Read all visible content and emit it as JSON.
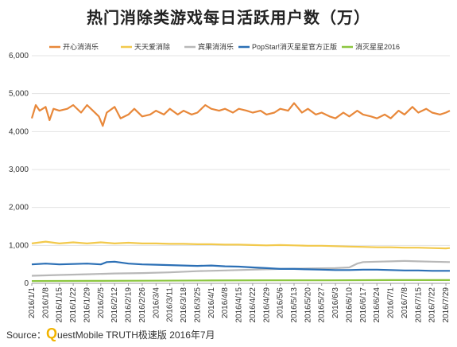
{
  "title": "热门消除类游戏每日活跃用户数（万）",
  "source": {
    "label": "Source：",
    "brand_q": "Q",
    "brand_rest": "uestMobile TRUTH极速版 2016年7月"
  },
  "chart_data": {
    "type": "line",
    "title": "热门消除类游戏每日活跃用户数（万）",
    "xlabel": "",
    "ylabel": "",
    "ylim": [
      0,
      6000
    ],
    "yticks": [
      0,
      1000,
      2000,
      3000,
      4000,
      5000,
      6000
    ],
    "ytick_labels": [
      "0",
      "1,000",
      "2,000",
      "3,000",
      "4,000",
      "5,000",
      "6,000"
    ],
    "grid": true,
    "legend": "top",
    "x_start": "2016/1/1",
    "x_end": "2016/7/31",
    "x_tick_labels": [
      "2016/1/1",
      "2016/1/8",
      "2016/1/15",
      "2016/1/22",
      "2016/1/29",
      "2016/2/5",
      "2016/2/12",
      "2016/2/19",
      "2016/2/26",
      "2016/3/4",
      "2016/3/11",
      "2016/3/18",
      "2016/3/25",
      "2016/4/1",
      "2016/4/8",
      "2016/4/15",
      "2016/4/22",
      "2016/4/29",
      "2016/5/6",
      "2016/5/13",
      "2016/5/20",
      "2016/5/27",
      "2016/6/3",
      "2016/6/10",
      "2016/6/17",
      "2016/6/24",
      "2016/7/1",
      "2016/7/8",
      "2016/7/15",
      "2016/7/22",
      "2016/7/29"
    ],
    "series": [
      {
        "name": "开心消消乐",
        "color": "#e8883a",
        "points": [
          [
            "2016/1/1",
            4350
          ],
          [
            "2016/1/3",
            4700
          ],
          [
            "2016/1/5",
            4550
          ],
          [
            "2016/1/8",
            4650
          ],
          [
            "2016/1/10",
            4300
          ],
          [
            "2016/1/12",
            4600
          ],
          [
            "2016/1/15",
            4550
          ],
          [
            "2016/1/19",
            4600
          ],
          [
            "2016/1/22",
            4700
          ],
          [
            "2016/1/26",
            4500
          ],
          [
            "2016/1/29",
            4700
          ],
          [
            "2016/2/1",
            4550
          ],
          [
            "2016/2/4",
            4400
          ],
          [
            "2016/2/6",
            4150
          ],
          [
            "2016/2/8",
            4500
          ],
          [
            "2016/2/12",
            4650
          ],
          [
            "2016/2/15",
            4350
          ],
          [
            "2016/2/19",
            4450
          ],
          [
            "2016/2/22",
            4600
          ],
          [
            "2016/2/26",
            4400
          ],
          [
            "2016/3/1",
            4450
          ],
          [
            "2016/3/4",
            4550
          ],
          [
            "2016/3/8",
            4450
          ],
          [
            "2016/3/11",
            4600
          ],
          [
            "2016/3/15",
            4450
          ],
          [
            "2016/3/18",
            4550
          ],
          [
            "2016/3/22",
            4450
          ],
          [
            "2016/3/25",
            4500
          ],
          [
            "2016/3/29",
            4700
          ],
          [
            "2016/4/1",
            4600
          ],
          [
            "2016/4/5",
            4550
          ],
          [
            "2016/4/8",
            4600
          ],
          [
            "2016/4/12",
            4500
          ],
          [
            "2016/4/15",
            4600
          ],
          [
            "2016/4/19",
            4550
          ],
          [
            "2016/4/22",
            4500
          ],
          [
            "2016/4/26",
            4550
          ],
          [
            "2016/4/29",
            4450
          ],
          [
            "2016/5/3",
            4500
          ],
          [
            "2016/5/6",
            4600
          ],
          [
            "2016/5/10",
            4550
          ],
          [
            "2016/5/13",
            4750
          ],
          [
            "2016/5/17",
            4500
          ],
          [
            "2016/5/20",
            4600
          ],
          [
            "2016/5/24",
            4450
          ],
          [
            "2016/5/27",
            4500
          ],
          [
            "2016/5/31",
            4400
          ],
          [
            "2016/6/3",
            4350
          ],
          [
            "2016/6/7",
            4500
          ],
          [
            "2016/6/10",
            4400
          ],
          [
            "2016/6/14",
            4550
          ],
          [
            "2016/6/17",
            4450
          ],
          [
            "2016/6/21",
            4400
          ],
          [
            "2016/6/24",
            4350
          ],
          [
            "2016/6/28",
            4450
          ],
          [
            "2016/7/1",
            4350
          ],
          [
            "2016/7/5",
            4550
          ],
          [
            "2016/7/8",
            4450
          ],
          [
            "2016/7/12",
            4650
          ],
          [
            "2016/7/15",
            4500
          ],
          [
            "2016/7/19",
            4600
          ],
          [
            "2016/7/22",
            4500
          ],
          [
            "2016/7/26",
            4450
          ],
          [
            "2016/7/29",
            4500
          ],
          [
            "2016/7/31",
            4550
          ]
        ]
      },
      {
        "name": "天天爱消除",
        "color": "#f2c94c",
        "points": [
          [
            "2016/1/1",
            1050
          ],
          [
            "2016/1/8",
            1100
          ],
          [
            "2016/1/15",
            1050
          ],
          [
            "2016/1/22",
            1080
          ],
          [
            "2016/1/29",
            1050
          ],
          [
            "2016/2/5",
            1080
          ],
          [
            "2016/2/12",
            1050
          ],
          [
            "2016/2/19",
            1070
          ],
          [
            "2016/2/26",
            1050
          ],
          [
            "2016/3/4",
            1050
          ],
          [
            "2016/3/11",
            1040
          ],
          [
            "2016/3/18",
            1040
          ],
          [
            "2016/3/25",
            1030
          ],
          [
            "2016/4/1",
            1030
          ],
          [
            "2016/4/8",
            1020
          ],
          [
            "2016/4/15",
            1020
          ],
          [
            "2016/4/22",
            1010
          ],
          [
            "2016/4/29",
            1000
          ],
          [
            "2016/5/6",
            1010
          ],
          [
            "2016/5/13",
            1000
          ],
          [
            "2016/5/20",
            990
          ],
          [
            "2016/5/27",
            990
          ],
          [
            "2016/6/3",
            980
          ],
          [
            "2016/6/10",
            970
          ],
          [
            "2016/6/17",
            960
          ],
          [
            "2016/6/24",
            950
          ],
          [
            "2016/7/1",
            950
          ],
          [
            "2016/7/8",
            940
          ],
          [
            "2016/7/15",
            940
          ],
          [
            "2016/7/22",
            930
          ],
          [
            "2016/7/29",
            920
          ],
          [
            "2016/7/31",
            930
          ]
        ]
      },
      {
        "name": "宾果消消乐",
        "color": "#b8b8b8",
        "points": [
          [
            "2016/1/1",
            200
          ],
          [
            "2016/1/15",
            220
          ],
          [
            "2016/1/29",
            240
          ],
          [
            "2016/2/12",
            260
          ],
          [
            "2016/2/26",
            270
          ],
          [
            "2016/3/11",
            290
          ],
          [
            "2016/3/25",
            320
          ],
          [
            "2016/4/8",
            340
          ],
          [
            "2016/4/22",
            360
          ],
          [
            "2016/5/6",
            380
          ],
          [
            "2016/5/20",
            390
          ],
          [
            "2016/6/3",
            400
          ],
          [
            "2016/6/10",
            420
          ],
          [
            "2016/6/14",
            520
          ],
          [
            "2016/6/17",
            560
          ],
          [
            "2016/6/24",
            570
          ],
          [
            "2016/7/1",
            580
          ],
          [
            "2016/7/8",
            590
          ],
          [
            "2016/7/15",
            580
          ],
          [
            "2016/7/22",
            570
          ],
          [
            "2016/7/31",
            560
          ]
        ]
      },
      {
        "name": "PopStar!消灭星星官方正版",
        "color": "#2b6fb5",
        "points": [
          [
            "2016/1/1",
            500
          ],
          [
            "2016/1/8",
            520
          ],
          [
            "2016/1/15",
            500
          ],
          [
            "2016/1/22",
            510
          ],
          [
            "2016/1/29",
            520
          ],
          [
            "2016/2/5",
            500
          ],
          [
            "2016/2/8",
            560
          ],
          [
            "2016/2/12",
            570
          ],
          [
            "2016/2/19",
            520
          ],
          [
            "2016/2/26",
            500
          ],
          [
            "2016/3/4",
            490
          ],
          [
            "2016/3/11",
            480
          ],
          [
            "2016/3/18",
            470
          ],
          [
            "2016/3/25",
            460
          ],
          [
            "2016/4/1",
            470
          ],
          [
            "2016/4/8",
            450
          ],
          [
            "2016/4/15",
            440
          ],
          [
            "2016/4/22",
            420
          ],
          [
            "2016/4/29",
            400
          ],
          [
            "2016/5/6",
            380
          ],
          [
            "2016/5/13",
            380
          ],
          [
            "2016/5/20",
            370
          ],
          [
            "2016/5/27",
            360
          ],
          [
            "2016/6/3",
            350
          ],
          [
            "2016/6/10",
            350
          ],
          [
            "2016/6/17",
            360
          ],
          [
            "2016/6/24",
            360
          ],
          [
            "2016/7/1",
            350
          ],
          [
            "2016/7/8",
            340
          ],
          [
            "2016/7/15",
            340
          ],
          [
            "2016/7/22",
            330
          ],
          [
            "2016/7/31",
            330
          ]
        ]
      },
      {
        "name": "消灭星星2016",
        "color": "#8cc63f",
        "points": [
          [
            "2016/1/1",
            60
          ],
          [
            "2016/2/1",
            65
          ],
          [
            "2016/3/1",
            70
          ],
          [
            "2016/4/1",
            75
          ],
          [
            "2016/5/1",
            80
          ],
          [
            "2016/6/1",
            80
          ],
          [
            "2016/7/1",
            85
          ],
          [
            "2016/7/31",
            85
          ]
        ]
      }
    ]
  }
}
